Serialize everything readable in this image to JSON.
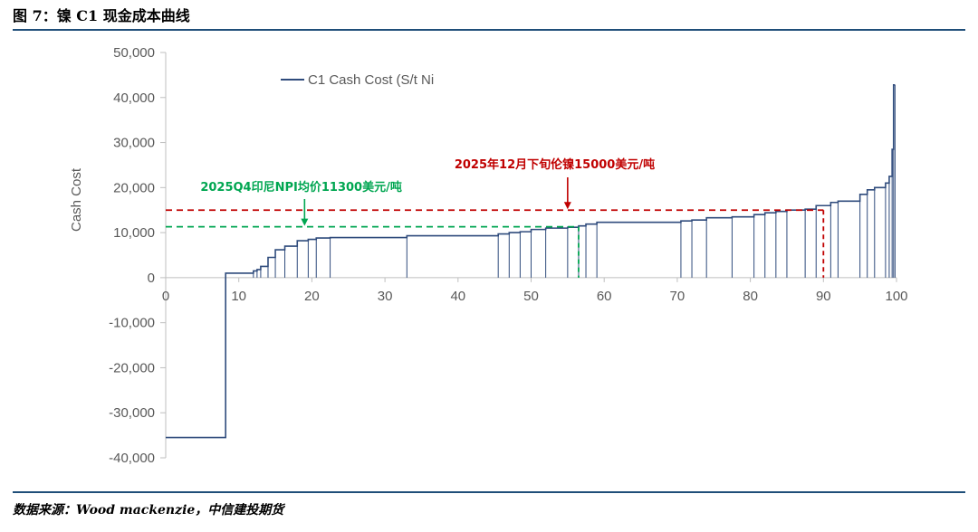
{
  "figure_title": "图 7：镍 C1 现金成本曲线",
  "source": "数据来源：Wood mackenzie，中信建投期货",
  "colors": {
    "line": "#2f4b7c",
    "red": "#c00000",
    "green": "#00a651",
    "axis": "#bfbfbf",
    "rule": "#1f4e79"
  },
  "chart_data": {
    "type": "line",
    "title": "",
    "xlabel": "",
    "ylabel": "Cash Cost",
    "legend": {
      "label": "C1 Cash Cost (S/t Ni",
      "placement": "top-left"
    },
    "xlim": [
      0,
      100
    ],
    "ylim": [
      -40000,
      50000
    ],
    "x_ticks": [
      0,
      10,
      20,
      30,
      40,
      50,
      60,
      70,
      80,
      90,
      100
    ],
    "y_ticks": [
      -40000,
      -30000,
      -20000,
      -10000,
      0,
      10000,
      20000,
      30000,
      40000,
      50000
    ],
    "y_tick_labels": [
      "-40,000",
      "-30,000",
      "-20,000",
      "-10,000",
      "0",
      "10,000",
      "20,000",
      "30,000",
      "40,000",
      "50,000"
    ],
    "x_start": 0,
    "series": [
      {
        "values": [
          [
            8.2,
            -35500
          ],
          [
            12.0,
            1000
          ],
          [
            12.5,
            1500
          ],
          [
            13.0,
            1800
          ],
          [
            14.0,
            2500
          ],
          [
            15.0,
            4500
          ],
          [
            16.3,
            6200
          ],
          [
            18.0,
            7000
          ],
          [
            19.5,
            8200
          ],
          [
            20.6,
            8500
          ],
          [
            22.5,
            8800
          ],
          [
            33.0,
            8900
          ],
          [
            45.5,
            9300
          ],
          [
            47.0,
            9700
          ],
          [
            48.5,
            10000
          ],
          [
            50.0,
            10200
          ],
          [
            52.0,
            10700
          ],
          [
            55.0,
            11000
          ],
          [
            56.5,
            11200
          ],
          [
            57.5,
            11500
          ],
          [
            59.0,
            11900
          ],
          [
            70.5,
            12300
          ],
          [
            72.0,
            12600
          ],
          [
            74.0,
            12800
          ],
          [
            77.5,
            13300
          ],
          [
            80.5,
            13500
          ],
          [
            82.0,
            14000
          ],
          [
            83.5,
            14400
          ],
          [
            85.0,
            14700
          ],
          [
            87.5,
            15000
          ],
          [
            89.0,
            15200
          ],
          [
            91.0,
            16000
          ],
          [
            92.0,
            16700
          ],
          [
            95.0,
            17000
          ],
          [
            96.0,
            18500
          ],
          [
            97.0,
            19500
          ],
          [
            98.5,
            20000
          ],
          [
            99.0,
            21000
          ],
          [
            99.4,
            22500
          ],
          [
            99.6,
            28500
          ],
          [
            99.8,
            42800
          ]
        ]
      }
    ],
    "reference_lines": [
      {
        "y": 15000,
        "label": "2025年12月下旬伦镍15000美元/吨",
        "color": "#c00000",
        "marker_x": 55,
        "drop_x": 90
      },
      {
        "y": 11300,
        "label": "2025Q4印尼NPI均价11300美元/吨",
        "color": "#00a651",
        "marker_x": 19,
        "drop_x": 56.5
      }
    ]
  }
}
